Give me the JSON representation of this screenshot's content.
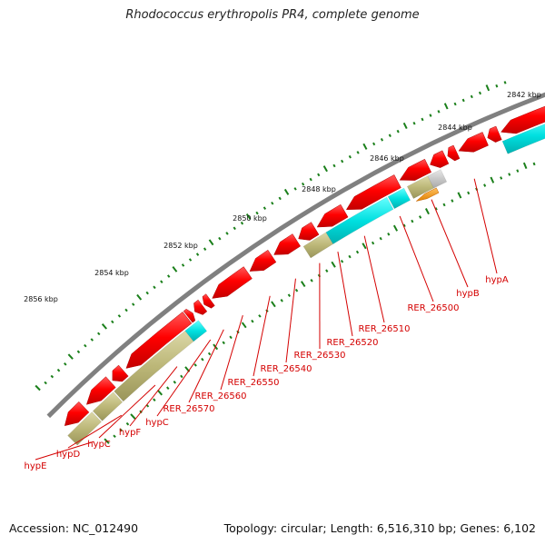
{
  "title": "Rhodococcus erythropolis PR4, complete genome",
  "footer": {
    "accession": "Accession: NC_012490",
    "summary": "Topology: circular; Length: 6,516,310 bp; Genes: 6,102"
  },
  "colors": {
    "backbone": "#808080",
    "gene_red": "#ff0000",
    "gene_cyan": "#00e5e5",
    "gene_olive": "#bcb778",
    "gene_orange": "#ff9900",
    "gene_gray": "#c8c8c8",
    "label_red": "#d40000",
    "tick_green": "#1a7f1a"
  },
  "scale_labels": [
    "2842 kbp",
    "2844 kbp",
    "2846 kbp",
    "2848 kbp",
    "2850 kbp",
    "2852 kbp",
    "2854 kbp",
    "2856 kbp"
  ],
  "gene_labels": [
    "hypA",
    "hypB",
    "RER_26500",
    "RER_26510",
    "RER_26520",
    "RER_26530",
    "RER_26540",
    "RER_26550",
    "RER_26560",
    "RER_26570",
    "hypC",
    "hypF",
    "hypC",
    "hypD",
    "hypE"
  ]
}
